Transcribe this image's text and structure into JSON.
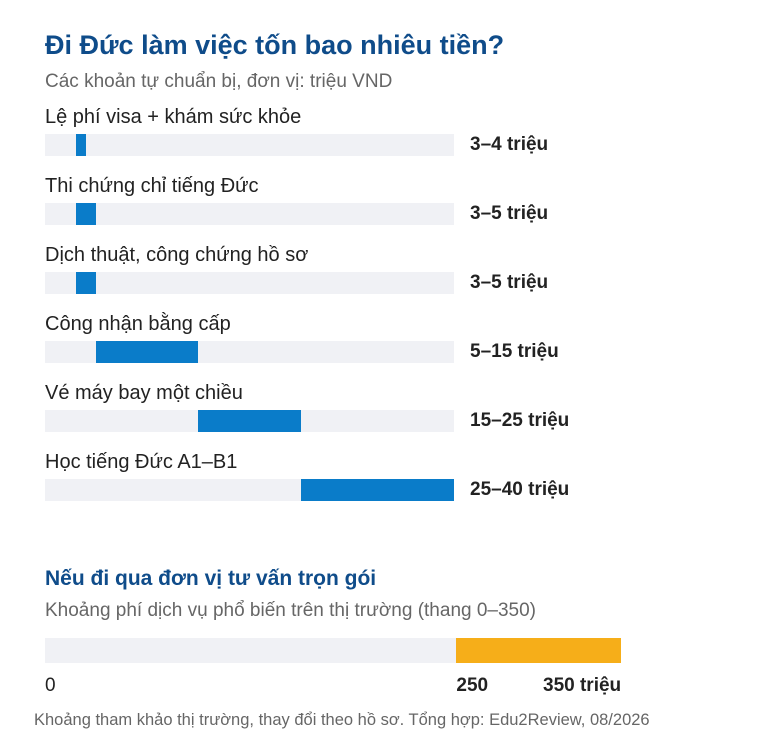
{
  "title": "Đi Đức làm việc tốn bao nhiêu tiền?",
  "subtitle": "Các khoản tự chuẩn bị, đơn vị: triệu VND",
  "chart_data": [
    {
      "type": "bar",
      "orientation": "horizontal",
      "title": "Đi Đức làm việc tốn bao nhiêu tiền?",
      "subtitle": "Các khoản tự chuẩn bị, đơn vị: triệu VND",
      "categories": [
        "Lệ phí visa + khám sức khỏe",
        "Thi chứng chỉ tiếng Đức",
        "Dịch thuật, công chứng hồ sơ",
        "Công nhận bằng cấp",
        "Vé máy bay một chiều",
        "Học tiếng Đức A1–B1"
      ],
      "ranges": [
        [
          3,
          4
        ],
        [
          3,
          5
        ],
        [
          3,
          5
        ],
        [
          5,
          15
        ],
        [
          15,
          25
        ],
        [
          25,
          40
        ]
      ],
      "range_labels": [
        "3–4 triệu",
        "3–5 triệu",
        "3–5 triệu",
        "5–15 triệu",
        "15–25 triệu",
        "25–40 triệu"
      ],
      "xlim": [
        0,
        40
      ],
      "color": "#0a7cc9"
    },
    {
      "type": "bar",
      "orientation": "horizontal",
      "title": "Nếu đi qua đơn vị tư vấn trọn gói",
      "subtitle": "Khoảng phí dịch vụ phổ biến trên thị trường (thang 0–350)",
      "range": [
        250,
        350
      ],
      "xlim": [
        0,
        350
      ],
      "tick_labels": [
        "0",
        "250",
        "350 triệu"
      ],
      "color": "#f6ae19"
    }
  ],
  "footnote": "Khoảng tham khảo thị trường, thay đổi theo hồ sơ. Tổng hợp: Edu2Review, 08/2026"
}
